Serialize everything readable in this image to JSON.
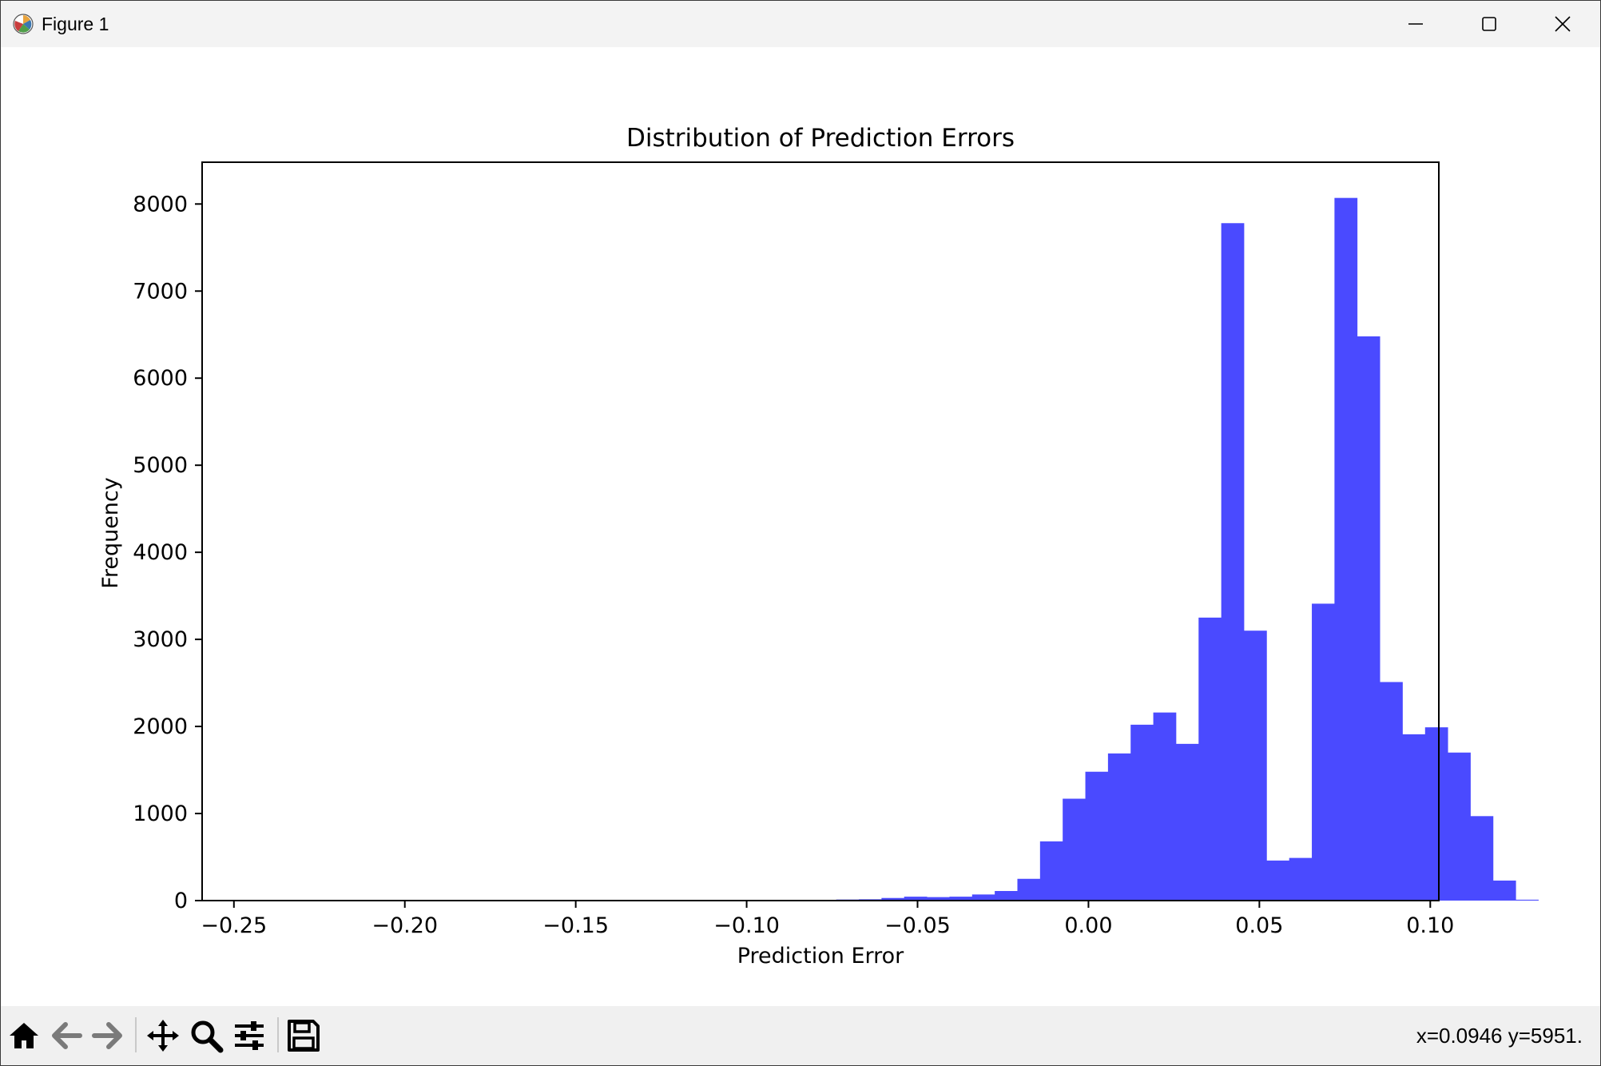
{
  "window": {
    "title": "Figure 1",
    "icons": {
      "app": "matplotlib-icon",
      "minimize": "minimize-icon",
      "maximize": "maximize-icon",
      "close": "close-icon"
    }
  },
  "toolbar": {
    "buttons": [
      {
        "name": "home-button",
        "icon": "home-icon"
      },
      {
        "name": "back-button",
        "icon": "arrow-left-icon"
      },
      {
        "name": "forward-button",
        "icon": "arrow-right-icon"
      },
      {
        "name": "pan-button",
        "icon": "move-icon"
      },
      {
        "name": "zoom-button",
        "icon": "magnifier-icon"
      },
      {
        "name": "configure-subplots-button",
        "icon": "sliders-icon"
      },
      {
        "name": "save-button",
        "icon": "floppy-disk-icon"
      }
    ],
    "coordinates": "x=0.0946 y=5951."
  },
  "chart_data": {
    "type": "bar",
    "title": "Distribution of Prediction Errors",
    "xlabel": "Prediction Error",
    "ylabel": "Frequency",
    "xlim": [
      -0.2593,
      0.1025
    ],
    "ylim": [
      0,
      8480
    ],
    "xticks": [
      -0.25,
      -0.2,
      -0.15,
      -0.1,
      -0.05,
      0.0,
      0.05,
      0.1
    ],
    "xtick_labels": [
      "−0.25",
      "−0.20",
      "−0.15",
      "−0.10",
      "−0.05",
      "0.00",
      "0.05",
      "0.10"
    ],
    "yticks": [
      0,
      1000,
      2000,
      3000,
      4000,
      5000,
      6000,
      7000,
      8000
    ],
    "ytick_labels": [
      "0",
      "1000",
      "2000",
      "3000",
      "4000",
      "5000",
      "6000",
      "7000",
      "8000"
    ],
    "bin_start": -0.2527,
    "bin_width": 0.006626,
    "values": [
      0,
      0,
      0,
      0,
      0,
      0,
      0,
      0,
      0,
      0,
      0,
      0,
      0,
      0,
      0,
      0,
      0,
      0,
      0,
      0,
      0,
      0,
      0,
      0,
      0,
      0,
      0,
      12,
      15,
      30,
      45,
      40,
      45,
      70,
      110,
      250,
      680,
      1170,
      1480,
      1690,
      2020,
      2160,
      1800,
      3250,
      7780,
      3100,
      460,
      490,
      3410,
      8070,
      6480,
      2510,
      1910,
      1990,
      1700,
      970,
      230,
      10
    ],
    "color": "#4a4aff",
    "grid": false,
    "legend": "none"
  }
}
